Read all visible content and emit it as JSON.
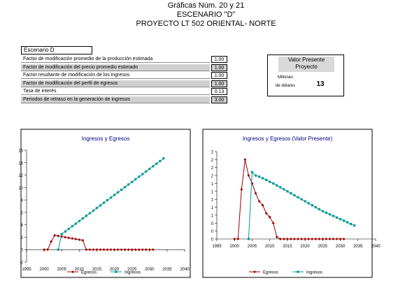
{
  "header": {
    "lines": [
      "Gráficas Núm. 20 y 21",
      "ESCENARIO \"D\"",
      "PROYECTO LT 502 ORIENTAL- NORTE"
    ]
  },
  "params": {
    "title": "Escenario D",
    "rows": [
      [
        "Factor de modificación promedio de la producción estimada",
        "1.00"
      ],
      [
        "Factor de modificación del precio promedio estimado",
        "1.00"
      ],
      [
        "Factor resultante de modificación de los ingresos",
        "1.00"
      ],
      [
        "Factor de modificación del perfil de egresos",
        "1.00"
      ],
      [
        "Tasa de interés",
        "0.13"
      ],
      [
        "Periodos de retraso en la generación de ingresos",
        "3.00"
      ]
    ]
  },
  "present_value": {
    "title": "Valor Presente Proyecto",
    "unit": "Millones de dólares",
    "value": "13"
  },
  "chart_data": [
    {
      "type": "line",
      "title": "Ingresos y Egresos",
      "xlim": [
        1995,
        2040
      ],
      "xticks": [
        1995,
        2000,
        2005,
        2010,
        2015,
        2020,
        2025,
        2030,
        2035,
        2040
      ],
      "ylim": [
        -2,
        16
      ],
      "yticks": [
        -2,
        0,
        2,
        4,
        6,
        8,
        10,
        12,
        14,
        16
      ],
      "legend": "bottom",
      "series": [
        {
          "name": "Egresos",
          "color": "#990000",
          "marker": "diamond",
          "x": [
            2000,
            2001,
            2002,
            2003,
            2004,
            2005,
            2006,
            2007,
            2008,
            2009,
            2010,
            2011,
            2012,
            2013,
            2014,
            2015,
            2016,
            2017,
            2018,
            2019,
            2020,
            2021,
            2022,
            2023,
            2024,
            2025,
            2026,
            2027,
            2028,
            2029,
            2030,
            2031
          ],
          "values": [
            0,
            0,
            1.3,
            2.3,
            2.2,
            2.1,
            2.0,
            1.9,
            1.8,
            1.7,
            1.6,
            1.5,
            0,
            0,
            0,
            0,
            0,
            0,
            0,
            0,
            0,
            0,
            0,
            0,
            0,
            0,
            0,
            0,
            0,
            0,
            0,
            0
          ]
        },
        {
          "name": "Ingresos",
          "color": "#009999",
          "marker": "square",
          "x": [
            2004,
            2005,
            2006,
            2007,
            2008,
            2009,
            2010,
            2011,
            2012,
            2013,
            2014,
            2015,
            2016,
            2017,
            2018,
            2019,
            2020,
            2021,
            2022,
            2023,
            2024,
            2025,
            2026,
            2027,
            2028,
            2029,
            2030,
            2031,
            2032,
            2033,
            2034
          ],
          "values": [
            0,
            2.5,
            2.92,
            3.34,
            3.76,
            4.18,
            4.6,
            5.02,
            5.44,
            5.86,
            6.28,
            6.7,
            7.12,
            7.54,
            7.96,
            8.38,
            8.8,
            9.22,
            9.64,
            10.06,
            10.48,
            10.9,
            11.32,
            11.74,
            12.16,
            12.58,
            13,
            13.42,
            13.84,
            14.26,
            14.68
          ]
        }
      ]
    },
    {
      "type": "line",
      "title": "Ingresos y Egresos (Valor Presente)",
      "xlim": [
        1995,
        2040
      ],
      "xticks": [
        1995,
        2000,
        2005,
        2010,
        2015,
        2020,
        2025,
        2030,
        2035,
        2040
      ],
      "ylim": [
        0,
        2.2
      ],
      "yticks": [
        0,
        {
          "value": 0.2,
          "label": "0"
        },
        {
          "value": 0.4,
          "label": "0"
        },
        {
          "value": 0.6,
          "label": "1"
        },
        {
          "value": 0.8,
          "label": "1"
        },
        1,
        {
          "value": 1.2,
          "label": "1"
        },
        {
          "value": 1.4,
          "label": "1"
        },
        {
          "value": 1.6,
          "label": "2"
        },
        {
          "value": 1.8,
          "label": "2"
        },
        2,
        {
          "value": 2.2,
          "label": "2"
        }
      ],
      "legend": "bottom",
      "series": [
        {
          "name": "Egresos",
          "color": "#990000",
          "marker": "diamond",
          "x": [
            2000,
            2001,
            2002,
            2003,
            2004,
            2005,
            2006,
            2007,
            2008,
            2009,
            2010,
            2011,
            2012,
            2013,
            2014,
            2015,
            2016,
            2017,
            2018,
            2019,
            2020,
            2021,
            2022,
            2023,
            2024,
            2025,
            2026,
            2027,
            2028,
            2029,
            2030,
            2031
          ],
          "values": [
            0,
            0,
            1.25,
            2.0,
            1.6,
            1.4,
            1.15,
            0.95,
            0.85,
            0.65,
            0.55,
            0.4,
            0.05,
            0,
            0,
            0,
            0,
            0,
            0,
            0,
            0,
            0,
            0,
            0,
            0,
            0,
            0,
            0,
            0,
            0,
            0,
            0
          ]
        },
        {
          "name": "Ingresos",
          "color": "#009999",
          "marker": "square",
          "x": [
            2004,
            2005,
            2006,
            2007,
            2008,
            2009,
            2010,
            2011,
            2012,
            2013,
            2014,
            2015,
            2016,
            2017,
            2018,
            2019,
            2020,
            2021,
            2022,
            2023,
            2024,
            2025,
            2026,
            2027,
            2028,
            2029,
            2030,
            2031,
            2032,
            2033,
            2034
          ],
          "values": [
            0,
            1.68,
            1.6,
            1.57,
            1.53,
            1.49,
            1.44,
            1.4,
            1.35,
            1.3,
            1.25,
            1.2,
            1.15,
            1.1,
            1.05,
            1.0,
            0.95,
            0.9,
            0.85,
            0.8,
            0.75,
            0.7,
            0.66,
            0.62,
            0.58,
            0.54,
            0.5,
            0.46,
            0.42,
            0.38,
            0.34
          ]
        }
      ]
    }
  ]
}
